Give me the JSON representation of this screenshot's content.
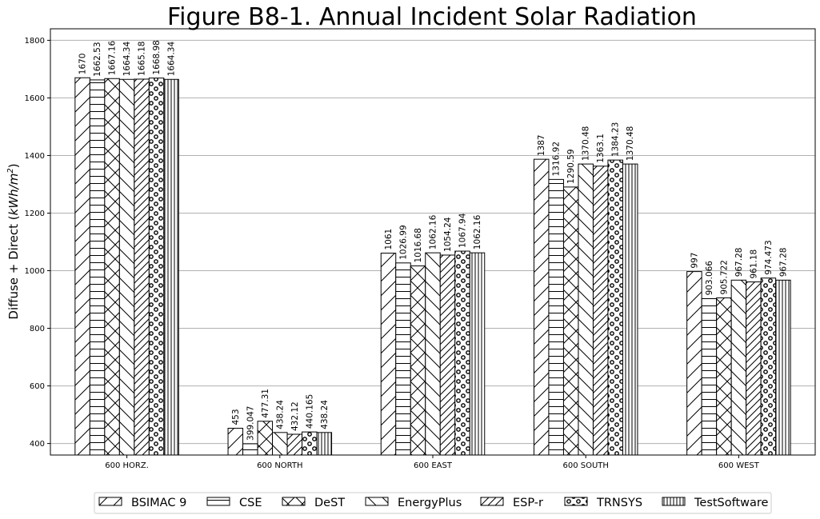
{
  "chart_data": {
    "type": "bar",
    "title": "Figure B8-1.  Annual Incident Solar Radiation",
    "ylabel_prefix": "Diffuse + Direct (",
    "ylabel_unit_main": "kWh/m",
    "ylabel_unit_sup": "2",
    "ylabel_suffix": ")",
    "xlabel": "",
    "ylim": [
      360,
      1840
    ],
    "yticks": [
      400,
      600,
      800,
      1000,
      1200,
      1400,
      1600,
      1800
    ],
    "grid": true,
    "legend_position": "bottom",
    "categories": [
      "600 HORZ.",
      "600 NORTH",
      "600 EAST",
      "600 SOUTH",
      "600 WEST"
    ],
    "series": [
      {
        "name": "BSIMAC 9",
        "hatch": "forward-diagonal",
        "values": [
          1670,
          453,
          1061,
          1387,
          997
        ],
        "labels": [
          "1670",
          "453",
          "1061",
          "1387",
          "997"
        ]
      },
      {
        "name": "CSE",
        "hatch": "horizontal",
        "values": [
          1662.53,
          399.047,
          1026.99,
          1316.92,
          903.066
        ],
        "labels": [
          "1662.53",
          "399.047",
          "1026.99",
          "1316.92",
          "903.066"
        ]
      },
      {
        "name": "DeST",
        "hatch": "cross-diagonal",
        "values": [
          1667.16,
          477.31,
          1016.68,
          1290.59,
          905.722
        ],
        "labels": [
          "1667.16",
          "477.31",
          "1016.68",
          "1290.59",
          "905.722"
        ]
      },
      {
        "name": "EnergyPlus",
        "hatch": "back-diagonal",
        "values": [
          1664.34,
          438.24,
          1062.16,
          1370.48,
          967.28
        ],
        "labels": [
          "1664.34",
          "438.24",
          "1062.16",
          "1370.48",
          "967.28"
        ]
      },
      {
        "name": "ESP-r",
        "hatch": "dense-forward-diagonal",
        "values": [
          1665.18,
          432.12,
          1054.24,
          1363.1,
          961.18
        ],
        "labels": [
          "1665.18",
          "432.12",
          "1054.24",
          "1363.1",
          "961.18"
        ]
      },
      {
        "name": "TRNSYS",
        "hatch": "circles",
        "values": [
          1668.98,
          440.165,
          1067.94,
          1384.23,
          974.473
        ],
        "labels": [
          "1668.98",
          "440.165",
          "1067.94",
          "1384.23",
          "974.473"
        ]
      },
      {
        "name": "TestSoftware",
        "hatch": "vertical",
        "values": [
          1664.34,
          438.24,
          1062.16,
          1370.48,
          967.28
        ],
        "labels": [
          "1664.34",
          "438.24",
          "1062.16",
          "1370.48",
          "967.28"
        ]
      }
    ]
  }
}
